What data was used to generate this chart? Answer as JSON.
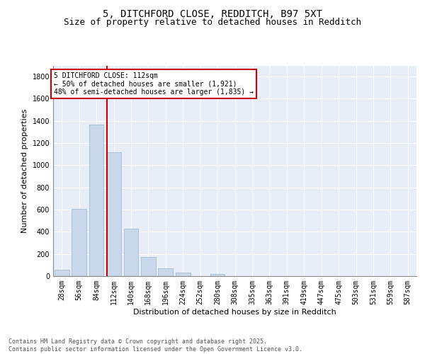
{
  "title_line1": "5, DITCHFORD CLOSE, REDDITCH, B97 5XT",
  "title_line2": "Size of property relative to detached houses in Redditch",
  "xlabel": "Distribution of detached houses by size in Redditch",
  "ylabel": "Number of detached properties",
  "footer": "Contains HM Land Registry data © Crown copyright and database right 2025.\nContains public sector information licensed under the Open Government Licence v3.0.",
  "bar_labels": [
    "28sqm",
    "56sqm",
    "84sqm",
    "112sqm",
    "140sqm",
    "168sqm",
    "196sqm",
    "224sqm",
    "252sqm",
    "280sqm",
    "308sqm",
    "335sqm",
    "363sqm",
    "391sqm",
    "419sqm",
    "447sqm",
    "475sqm",
    "503sqm",
    "531sqm",
    "559sqm",
    "587sqm"
  ],
  "bar_values": [
    60,
    605,
    1365,
    1120,
    430,
    170,
    70,
    35,
    0,
    20,
    0,
    0,
    0,
    0,
    0,
    0,
    0,
    0,
    0,
    0,
    0
  ],
  "bar_color": "#c8d8ea",
  "bar_edgecolor": "#aac0d5",
  "vline_color": "#cc0000",
  "vline_x_index": 2.6,
  "annotation_text": "5 DITCHFORD CLOSE: 112sqm\n← 50% of detached houses are smaller (1,921)\n48% of semi-detached houses are larger (1,835) →",
  "annotation_box_facecolor": "white",
  "annotation_box_edgecolor": "#cc0000",
  "ylim": [
    0,
    1900
  ],
  "yticks": [
    0,
    200,
    400,
    600,
    800,
    1000,
    1200,
    1400,
    1600,
    1800
  ],
  "background_color": "#e8eef8",
  "grid_color": "#ffffff",
  "title_fontsize": 10,
  "subtitle_fontsize": 9,
  "axis_label_fontsize": 8,
  "tick_fontsize": 7,
  "annotation_fontsize": 7,
  "footer_fontsize": 6
}
